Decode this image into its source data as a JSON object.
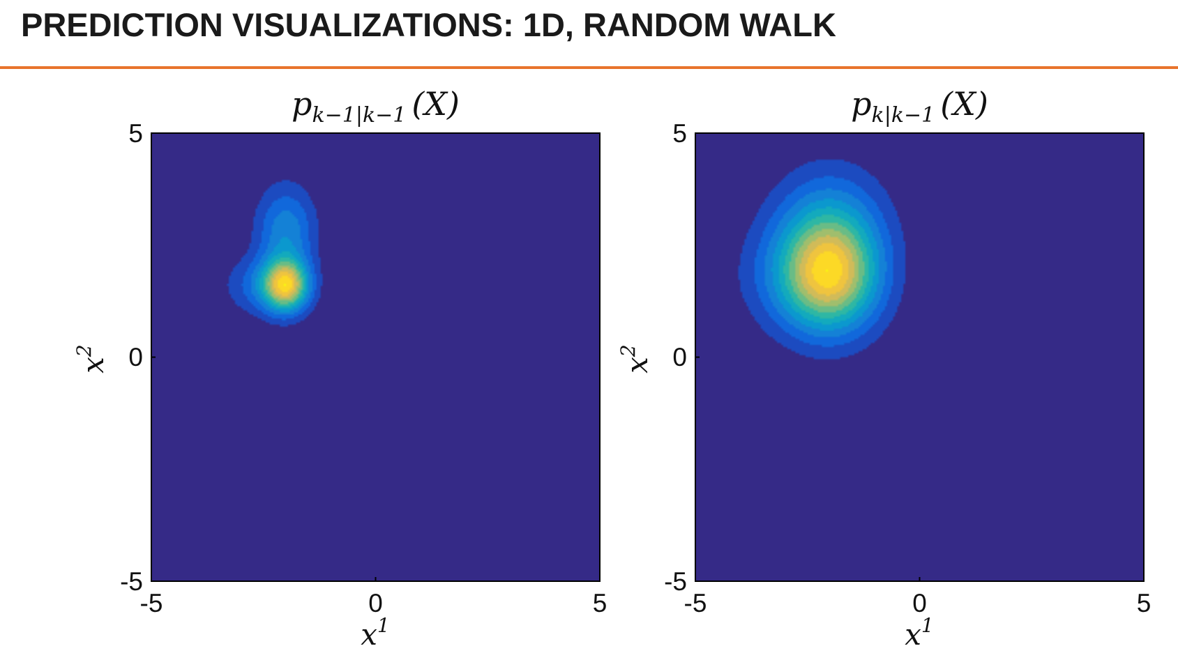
{
  "slide": {
    "title": "PREDICTION VISUALIZATIONS: 1D, RANDOM WALK"
  },
  "colors": {
    "rule": "#e8742c",
    "colormap": [
      "#352a87",
      "#0f5cdd",
      "#1481d6",
      "#06a4ca",
      "#2eb7a4",
      "#87bf77",
      "#d1bb59",
      "#fec832",
      "#f9fb0e"
    ]
  },
  "chart_data": [
    {
      "type": "heatmap",
      "title": {
        "main": "p",
        "sub": "k−1|k−1",
        "arg": "(X)"
      },
      "xlabel": {
        "base": "x",
        "sup": "1"
      },
      "ylabel": {
        "base": "x",
        "sup": "2"
      },
      "xlim": [
        -5,
        5
      ],
      "ylim": [
        -5,
        5
      ],
      "xticks": [
        "-5",
        "0",
        "5"
      ],
      "yticks": [
        "-5",
        "0",
        "5"
      ],
      "colormap": "parula",
      "components": [
        {
          "mean": [
            -2.0,
            1.6
          ],
          "sigma": [
            0.35,
            0.4
          ],
          "weight": 1.0
        },
        {
          "mean": [
            -2.0,
            2.8
          ],
          "sigma": [
            0.45,
            0.7
          ],
          "weight": 0.38
        },
        {
          "mean": [
            -2.6,
            1.6
          ],
          "sigma": [
            0.55,
            0.45
          ],
          "weight": 0.22
        }
      ]
    },
    {
      "type": "heatmap",
      "title": {
        "main": "p",
        "sub": "k|k−1",
        "arg": "(X)"
      },
      "xlabel": {
        "base": "x",
        "sup": "1"
      },
      "ylabel": {
        "base": "x",
        "sup": "2"
      },
      "xlim": [
        -5,
        5
      ],
      "ylim": [
        -5,
        5
      ],
      "xticks": [
        "-5",
        "0",
        "5"
      ],
      "yticks": [
        "-5",
        "0",
        "5"
      ],
      "colormap": "parula",
      "components": [
        {
          "mean": [
            -2.0,
            1.8
          ],
          "sigma": [
            0.75,
            0.85
          ],
          "weight": 1.0
        },
        {
          "mean": [
            -2.0,
            3.0
          ],
          "sigma": [
            0.85,
            0.9
          ],
          "weight": 0.35
        },
        {
          "mean": [
            -2.7,
            1.8
          ],
          "sigma": [
            0.95,
            0.85
          ],
          "weight": 0.2
        }
      ]
    }
  ]
}
